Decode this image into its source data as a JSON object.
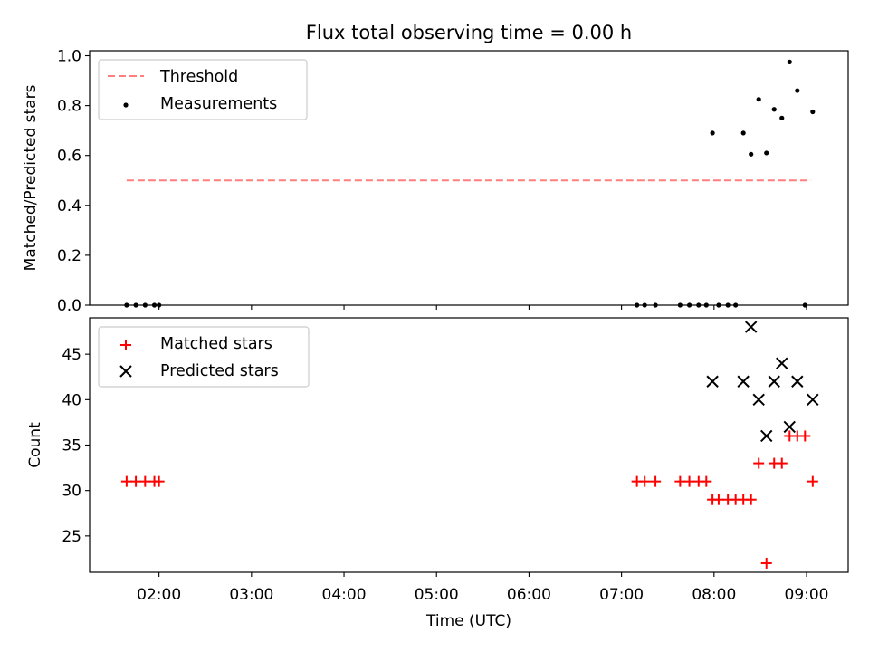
{
  "figure": {
    "title": "Flux total observing time = 0.00 h"
  },
  "chart_data": [
    {
      "type": "scatter",
      "title": "Flux total observing time = 0.00 h",
      "xlabel": "",
      "ylabel": "Matched/Predicted stars",
      "xlim": [
        "01:15",
        "09:27"
      ],
      "ylim": [
        0,
        1.02
      ],
      "yticks": [
        0.0,
        0.2,
        0.4,
        0.6,
        0.8,
        1.0
      ],
      "ytick_labels": [
        "0.0",
        "0.2",
        "0.4",
        "0.6",
        "0.8",
        "1.0"
      ],
      "legend": "top-left",
      "legend_entries": [
        "Threshold",
        "Measurements"
      ],
      "threshold": {
        "name": "Threshold",
        "color": "#ff7f7f",
        "style": "dashed",
        "x": [
          "01:39",
          "09:03"
        ],
        "y": 0.5
      },
      "series": [
        {
          "name": "Measurements",
          "color": "#000000",
          "marker": "dot",
          "x": [
            "01:39",
            "01:45",
            "01:51",
            "01:57",
            "02:00",
            "07:10",
            "07:15",
            "07:22",
            "07:38",
            "07:44",
            "07:50",
            "07:55",
            "08:03",
            "08:09",
            "08:14",
            "07:59",
            "08:19",
            "08:24",
            "08:29",
            "08:34",
            "08:39",
            "08:44",
            "08:49",
            "08:54",
            "08:59",
            "09:04"
          ],
          "y": [
            0,
            0,
            0,
            0,
            0,
            0,
            0,
            0,
            0,
            0,
            0,
            0,
            0,
            0,
            0,
            0.69,
            0.69,
            0.605,
            0.825,
            0.61,
            0.785,
            0.75,
            0.975,
            0.86,
            0,
            0.775
          ]
        }
      ]
    },
    {
      "type": "scatter",
      "title": "",
      "xlabel": "Time (UTC)",
      "ylabel": "Count",
      "xlim": [
        "01:15",
        "09:27"
      ],
      "ylim": [
        21,
        49
      ],
      "xticks": [
        "02:00",
        "03:00",
        "04:00",
        "05:00",
        "06:00",
        "07:00",
        "08:00",
        "09:00"
      ],
      "yticks": [
        25,
        30,
        35,
        40,
        45
      ],
      "ytick_labels": [
        "25",
        "30",
        "35",
        "40",
        "45"
      ],
      "legend": "top-left",
      "legend_entries": [
        "Matched stars",
        "Predicted stars"
      ],
      "series": [
        {
          "name": "Matched stars",
          "color": "#ff0000",
          "marker": "plus",
          "x": [
            "01:39",
            "01:45",
            "01:51",
            "01:57",
            "02:00",
            "07:10",
            "07:15",
            "07:22",
            "07:38",
            "07:44",
            "07:50",
            "07:55",
            "07:59",
            "08:03",
            "08:09",
            "08:14",
            "08:19",
            "08:24",
            "08:29",
            "08:34",
            "08:39",
            "08:44",
            "08:49",
            "08:54",
            "08:59",
            "09:04"
          ],
          "y": [
            31,
            31,
            31,
            31,
            31,
            31,
            31,
            31,
            31,
            31,
            31,
            31,
            29,
            29,
            29,
            29,
            29,
            29,
            33,
            22,
            33,
            33,
            36,
            36,
            36,
            31
          ]
        },
        {
          "name": "Predicted stars",
          "color": "#000000",
          "marker": "x",
          "x": [
            "07:59",
            "08:19",
            "08:24",
            "08:29",
            "08:34",
            "08:39",
            "08:44",
            "08:49",
            "08:54",
            "09:04"
          ],
          "y": [
            42,
            42,
            48,
            40,
            36,
            42,
            44,
            37,
            42,
            40
          ]
        }
      ]
    }
  ]
}
